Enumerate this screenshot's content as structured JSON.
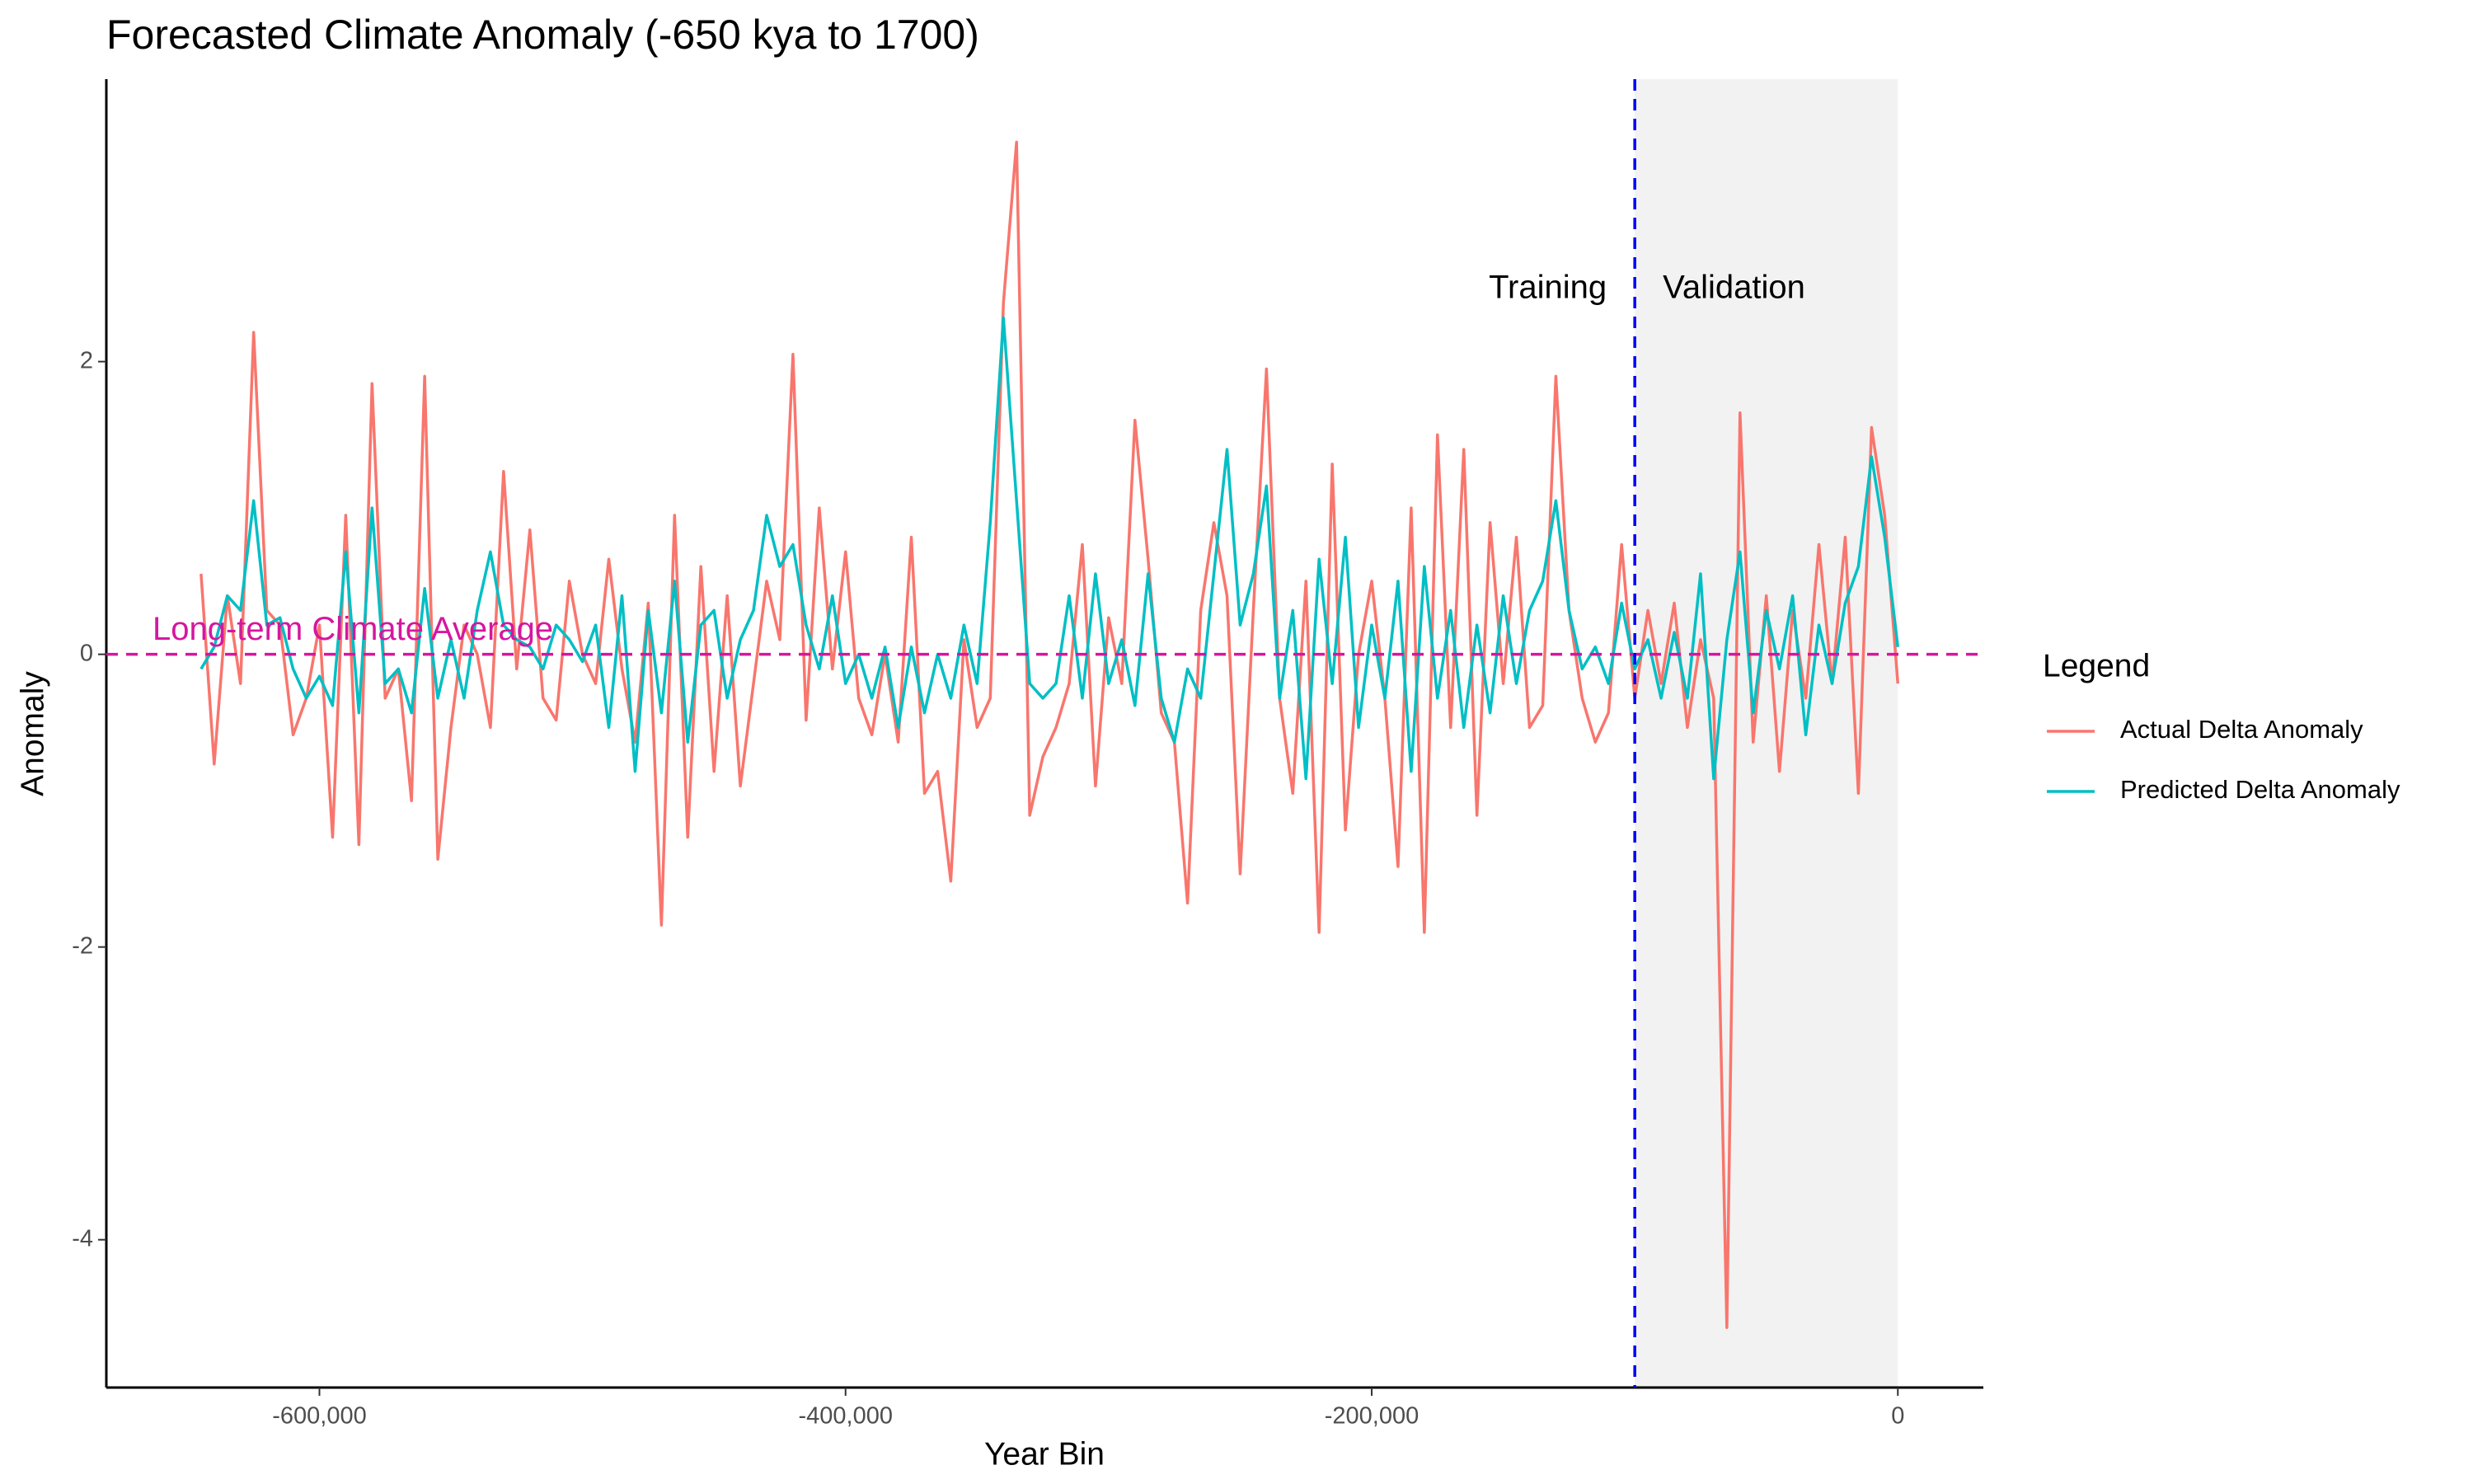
{
  "chart_data": {
    "type": "line",
    "title": "Forecasted Climate Anomaly (-650 kya to 1700)",
    "x_label": "Year Bin",
    "y_label": "Anomaly",
    "legend_title": "Legend",
    "legend_position": "right",
    "grid": false,
    "xlim": [
      -681000,
      32500
    ],
    "ylim": [
      -5.01,
      3.93
    ],
    "xticks": [
      {
        "value": -600000,
        "label": "-600,000"
      },
      {
        "value": -400000,
        "label": "-400,000"
      },
      {
        "value": -200000,
        "label": "-200,000"
      },
      0
    ],
    "yticks": [
      -4,
      -2,
      0,
      2
    ],
    "shaded_region": {
      "range": [
        -100000,
        0
      ],
      "color": "#f2f2f2"
    },
    "vline": {
      "value": -100000,
      "color": "#0000ff",
      "left_label": "Training",
      "right_label": "Validation"
    },
    "hline": {
      "value": 0,
      "color": "#d4179f",
      "label": "Long-term Climate Average"
    },
    "x": [
      -645000,
      -640000,
      -635000,
      -630000,
      -625000,
      -620000,
      -615000,
      -610000,
      -605000,
      -600000,
      -595000,
      -590000,
      -585000,
      -580000,
      -575000,
      -570000,
      -565000,
      -560000,
      -555000,
      -550000,
      -545000,
      -540000,
      -535000,
      -530000,
      -525000,
      -520000,
      -515000,
      -510000,
      -505000,
      -500000,
      -495000,
      -490000,
      -485000,
      -480000,
      -475000,
      -470000,
      -465000,
      -460000,
      -455000,
      -450000,
      -445000,
      -440000,
      -435000,
      -430000,
      -425000,
      -420000,
      -415000,
      -410000,
      -405000,
      -400000,
      -395000,
      -390000,
      -385000,
      -380000,
      -375000,
      -370000,
      -365000,
      -360000,
      -355000,
      -350000,
      -345000,
      -340000,
      -335000,
      -330000,
      -325000,
      -320000,
      -315000,
      -310000,
      -305000,
      -300000,
      -295000,
      -290000,
      -285000,
      -280000,
      -275000,
      -270000,
      -265000,
      -260000,
      -255000,
      -250000,
      -245000,
      -240000,
      -235000,
      -230000,
      -225000,
      -220000,
      -215000,
      -210000,
      -205000,
      -200000,
      -195000,
      -190000,
      -185000,
      -180000,
      -175000,
      -170000,
      -165000,
      -160000,
      -155000,
      -150000,
      -145000,
      -140000,
      -135000,
      -130000,
      -125000,
      -120000,
      -115000,
      -110000,
      -105000,
      -100000,
      -95000,
      -90000,
      -85000,
      -80000,
      -75000,
      -70000,
      -65000,
      -60000,
      -55000,
      -50000,
      -45000,
      -40000,
      -35000,
      -30000,
      -25000,
      -20000,
      -15000,
      -10000,
      -5000,
      0
    ],
    "series": [
      {
        "name": "Actual Delta Anomaly",
        "color": "#F8766D",
        "values": [
          0.55,
          -0.75,
          0.4,
          -0.2,
          2.2,
          0.3,
          0.2,
          -0.55,
          -0.3,
          0.2,
          -1.25,
          0.95,
          -1.3,
          1.85,
          -0.3,
          -0.1,
          -1.0,
          1.9,
          -1.4,
          -0.5,
          0.2,
          0.0,
          -0.5,
          1.25,
          -0.1,
          0.85,
          -0.3,
          -0.45,
          0.5,
          0.0,
          -0.2,
          0.65,
          -0.1,
          -0.6,
          0.35,
          -1.85,
          0.95,
          -1.25,
          0.6,
          -0.8,
          0.4,
          -0.9,
          -0.2,
          0.5,
          0.1,
          2.05,
          -0.45,
          1.0,
          -0.1,
          0.7,
          -0.3,
          -0.55,
          0.0,
          -0.6,
          0.8,
          -0.95,
          -0.8,
          -1.55,
          0.1,
          -0.5,
          -0.3,
          2.4,
          3.5,
          -1.1,
          -0.7,
          -0.5,
          -0.2,
          0.75,
          -0.9,
          0.25,
          -0.2,
          1.6,
          0.65,
          -0.4,
          -0.6,
          -1.7,
          0.3,
          0.9,
          0.4,
          -1.5,
          0.3,
          1.95,
          -0.3,
          -0.95,
          0.5,
          -1.9,
          1.3,
          -1.2,
          0.0,
          0.5,
          -0.3,
          -1.45,
          1.0,
          -1.9,
          1.5,
          -0.5,
          1.4,
          -1.1,
          0.9,
          -0.2,
          0.8,
          -0.5,
          -0.35,
          1.9,
          0.3,
          -0.3,
          -0.6,
          -0.4,
          0.75,
          -0.3,
          0.3,
          -0.2,
          0.35,
          -0.5,
          0.1,
          -0.3,
          -4.6,
          1.65,
          -0.6,
          0.4,
          -0.8,
          0.3,
          -0.3,
          0.75,
          -0.2,
          0.8,
          -0.95,
          1.55,
          0.95,
          -0.2
        ]
      },
      {
        "name": "Predicted Delta Anomaly",
        "color": "#00BFC4",
        "values": [
          -0.1,
          0.05,
          0.4,
          0.3,
          1.05,
          0.2,
          0.25,
          -0.1,
          -0.3,
          -0.15,
          -0.35,
          0.7,
          -0.4,
          1.0,
          -0.2,
          -0.1,
          -0.4,
          0.45,
          -0.3,
          0.1,
          -0.3,
          0.3,
          0.7,
          0.2,
          0.1,
          0.05,
          -0.1,
          0.2,
          0.1,
          -0.05,
          0.2,
          -0.5,
          0.4,
          -0.8,
          0.3,
          -0.4,
          0.5,
          -0.6,
          0.2,
          0.3,
          -0.3,
          0.1,
          0.3,
          0.95,
          0.6,
          0.75,
          0.2,
          -0.1,
          0.4,
          -0.2,
          0.0,
          -0.3,
          0.05,
          -0.5,
          0.05,
          -0.4,
          0.0,
          -0.3,
          0.2,
          -0.2,
          0.9,
          2.3,
          1.05,
          -0.2,
          -0.3,
          -0.2,
          0.4,
          -0.3,
          0.55,
          -0.2,
          0.1,
          -0.35,
          0.55,
          -0.3,
          -0.6,
          -0.1,
          -0.3,
          0.55,
          1.4,
          0.2,
          0.55,
          1.15,
          -0.3,
          0.3,
          -0.85,
          0.65,
          -0.2,
          0.8,
          -0.5,
          0.2,
          -0.3,
          0.5,
          -0.8,
          0.6,
          -0.3,
          0.3,
          -0.5,
          0.2,
          -0.4,
          0.4,
          -0.2,
          0.3,
          0.5,
          1.05,
          0.3,
          -0.1,
          0.05,
          -0.2,
          0.35,
          -0.1,
          0.1,
          -0.3,
          0.15,
          -0.3,
          0.55,
          -0.85,
          0.1,
          0.7,
          -0.4,
          0.3,
          -0.1,
          0.4,
          -0.55,
          0.2,
          -0.2,
          0.35,
          0.6,
          1.35,
          0.8,
          0.05
        ]
      }
    ]
  }
}
